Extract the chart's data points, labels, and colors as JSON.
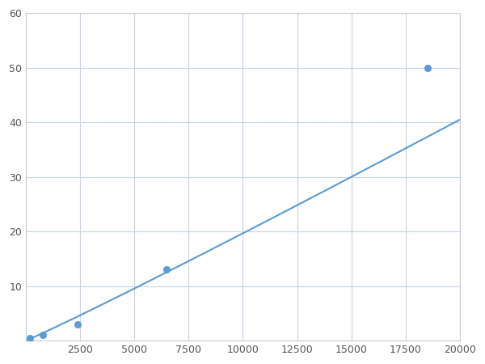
{
  "x_data": [
    200,
    800,
    2400,
    6500,
    18500
  ],
  "y_data": [
    0.5,
    1.0,
    3.0,
    13.0,
    50.0
  ],
  "line_color": "#5b9bd5",
  "marker_color": "#5b9bd5",
  "marker_size": 6,
  "line_width": 1.5,
  "xlim": [
    0,
    20000
  ],
  "ylim": [
    0,
    60
  ],
  "xticks": [
    0,
    2500,
    5000,
    7500,
    10000,
    12500,
    15000,
    17500,
    20000
  ],
  "yticks": [
    0,
    10,
    20,
    30,
    40,
    50,
    60
  ],
  "grid_color": "#c8d4e8",
  "background_color": "#ffffff",
  "fig_bg_color": "#ffffff"
}
